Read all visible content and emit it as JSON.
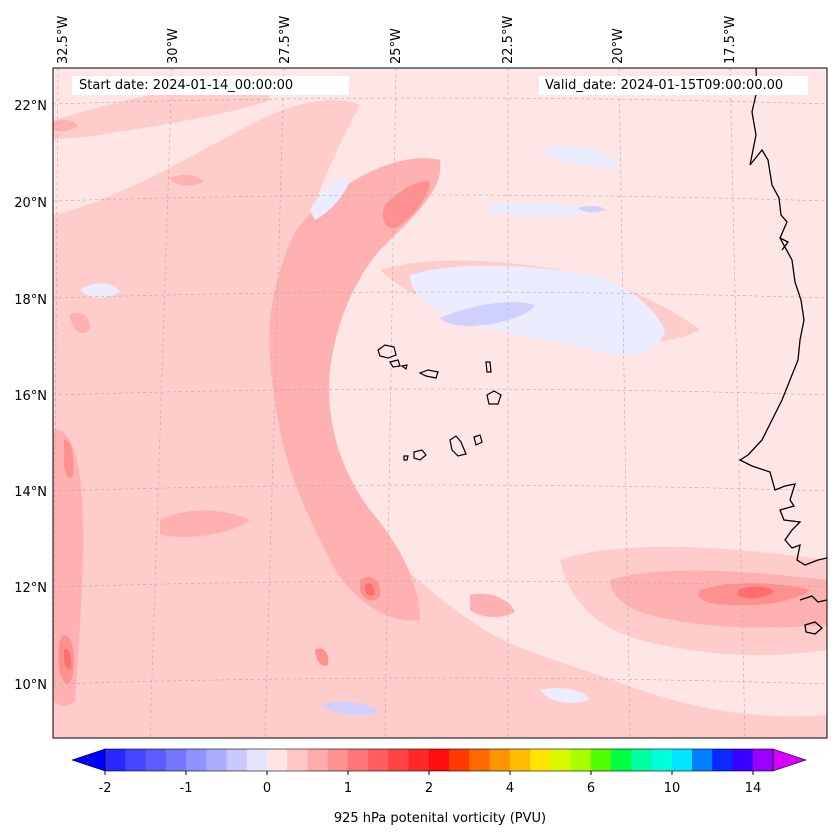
{
  "map": {
    "start_label": "Start date: 2024-01-14_00:00:00",
    "valid_label": "Valid_date: 2024-01-15T09:00:00.00",
    "lon_labels": [
      "32.5°W",
      "30°W",
      "27.5°W",
      "25°W",
      "22.5°W",
      "20°W",
      "17.5°W"
    ],
    "lat_labels": [
      "22°N",
      "20°N",
      "18°N",
      "16°N",
      "14°N",
      "12°N",
      "10°N"
    ],
    "colorbar": {
      "label": "925 hPa potenital vorticity (PVU)",
      "ticks": [
        "-2",
        "-1",
        "0",
        "1",
        "2",
        "4",
        "6",
        "10",
        "14"
      ],
      "colors": [
        "#2828ff",
        "#4444ff",
        "#5c5cff",
        "#7474ff",
        "#9090ff",
        "#acacff",
        "#c8c8ff",
        "#e4e4ff",
        "#ffe4e4",
        "#ffc8c8",
        "#ffacac",
        "#ff9090",
        "#ff7474",
        "#ff5c5c",
        "#ff4444",
        "#ff2828",
        "#ff0c0c",
        "#ff3a00",
        "#ff6a00",
        "#ff9400",
        "#ffbc00",
        "#ffe400",
        "#d8f800",
        "#a8ff00",
        "#50ff00",
        "#00ff40",
        "#00ffa0",
        "#00ffd8",
        "#00e4ff",
        "#0080ff",
        "#0a28ff",
        "#3a00ff",
        "#9a00ff"
      ],
      "under_color": "#0000ff",
      "over_color": "#d600ff"
    },
    "fill_colors": {
      "background": "#ffe6e6",
      "light": "#ffcccc",
      "medium": "#ffb0b0",
      "strong": "#ff9090",
      "peak": "#ff6e6e",
      "neg_light": "#ececff",
      "neg_medium": "#d0d0ff"
    }
  }
}
